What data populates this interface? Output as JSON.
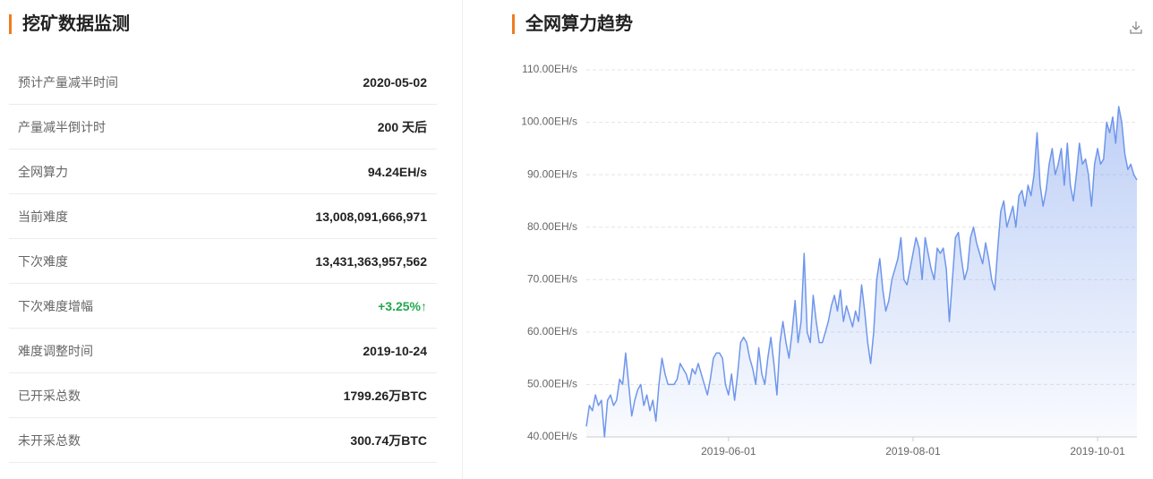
{
  "panel": {
    "title": "挖矿数据监测",
    "rows": [
      [
        "预计产量减半时间",
        "2020-05-02"
      ],
      [
        "产量减半倒计时",
        "200 天后"
      ],
      [
        "全网算力",
        "94.24EH/s"
      ],
      [
        "当前难度",
        "13,008,091,666,971"
      ],
      [
        "下次难度",
        "13,431,363,957,562"
      ],
      [
        "下次难度增幅",
        "+3.25%↑"
      ],
      [
        "难度调整时间",
        "2019-10-24"
      ],
      [
        "已开采总数",
        "1799.26万BTC"
      ],
      [
        "未开采总数",
        "300.74万BTC"
      ]
    ]
  },
  "chart_data": {
    "type": "area",
    "title": "全网算力趋势",
    "color": "#6f96ec",
    "x": [
      "2019-04-15",
      "2019-04-16",
      "2019-04-17",
      "2019-04-18",
      "2019-04-19",
      "2019-04-20",
      "2019-04-21",
      "2019-04-22",
      "2019-04-23",
      "2019-04-24",
      "2019-04-25",
      "2019-04-26",
      "2019-04-27",
      "2019-04-28",
      "2019-04-29",
      "2019-04-30",
      "2019-05-01",
      "2019-05-02",
      "2019-05-03",
      "2019-05-04",
      "2019-05-05",
      "2019-05-06",
      "2019-05-07",
      "2019-05-08",
      "2019-05-09",
      "2019-05-10",
      "2019-05-11",
      "2019-05-12",
      "2019-05-13",
      "2019-05-14",
      "2019-05-15",
      "2019-05-16",
      "2019-05-17",
      "2019-05-18",
      "2019-05-19",
      "2019-05-20",
      "2019-05-21",
      "2019-05-22",
      "2019-05-23",
      "2019-05-24",
      "2019-05-25",
      "2019-05-26",
      "2019-05-27",
      "2019-05-28",
      "2019-05-29",
      "2019-05-30",
      "2019-05-31",
      "2019-06-01",
      "2019-06-02",
      "2019-06-03",
      "2019-06-04",
      "2019-06-05",
      "2019-06-06",
      "2019-06-07",
      "2019-06-08",
      "2019-06-09",
      "2019-06-10",
      "2019-06-11",
      "2019-06-12",
      "2019-06-13",
      "2019-06-14",
      "2019-06-15",
      "2019-06-16",
      "2019-06-17",
      "2019-06-18",
      "2019-06-19",
      "2019-06-20",
      "2019-06-21",
      "2019-06-22",
      "2019-06-23",
      "2019-06-24",
      "2019-06-25",
      "2019-06-26",
      "2019-06-27",
      "2019-06-28",
      "2019-06-29",
      "2019-06-30",
      "2019-07-01",
      "2019-07-02",
      "2019-07-03",
      "2019-07-04",
      "2019-07-05",
      "2019-07-06",
      "2019-07-07",
      "2019-07-08",
      "2019-07-09",
      "2019-07-10",
      "2019-07-11",
      "2019-07-12",
      "2019-07-13",
      "2019-07-14",
      "2019-07-15",
      "2019-07-16",
      "2019-07-17",
      "2019-07-18",
      "2019-07-19",
      "2019-07-20",
      "2019-07-21",
      "2019-07-22",
      "2019-07-23",
      "2019-07-24",
      "2019-07-25",
      "2019-07-26",
      "2019-07-27",
      "2019-07-28",
      "2019-07-29",
      "2019-07-30",
      "2019-07-31",
      "2019-08-01",
      "2019-08-02",
      "2019-08-03",
      "2019-08-04",
      "2019-08-05",
      "2019-08-06",
      "2019-08-07",
      "2019-08-08",
      "2019-08-09",
      "2019-08-10",
      "2019-08-11",
      "2019-08-12",
      "2019-08-13",
      "2019-08-14",
      "2019-08-15",
      "2019-08-16",
      "2019-08-17",
      "2019-08-18",
      "2019-08-19",
      "2019-08-20",
      "2019-08-21",
      "2019-08-22",
      "2019-08-23",
      "2019-08-24",
      "2019-08-25",
      "2019-08-26",
      "2019-08-27",
      "2019-08-28",
      "2019-08-29",
      "2019-08-30",
      "2019-08-31",
      "2019-09-01",
      "2019-09-02",
      "2019-09-03",
      "2019-09-04",
      "2019-09-05",
      "2019-09-06",
      "2019-09-07",
      "2019-09-08",
      "2019-09-09",
      "2019-09-10",
      "2019-09-11",
      "2019-09-12",
      "2019-09-13",
      "2019-09-14",
      "2019-09-15",
      "2019-09-16",
      "2019-09-17",
      "2019-09-18",
      "2019-09-19",
      "2019-09-20",
      "2019-09-21",
      "2019-09-22",
      "2019-09-23",
      "2019-09-24",
      "2019-09-25",
      "2019-09-26",
      "2019-09-27",
      "2019-09-28",
      "2019-09-29",
      "2019-09-30",
      "2019-10-01",
      "2019-10-02",
      "2019-10-03",
      "2019-10-04",
      "2019-10-05",
      "2019-10-06",
      "2019-10-07",
      "2019-10-08",
      "2019-10-09",
      "2019-10-10",
      "2019-10-11",
      "2019-10-12",
      "2019-10-13",
      "2019-10-14"
    ],
    "values": [
      42,
      46,
      45,
      48,
      46,
      47,
      40,
      47,
      48,
      46,
      47,
      51,
      50,
      56,
      50,
      44,
      47,
      49,
      50,
      46,
      48,
      45,
      47,
      43,
      50,
      55,
      52,
      50,
      50,
      50,
      51,
      54,
      53,
      52,
      50,
      53,
      52,
      54,
      52,
      50,
      48,
      51,
      55,
      56,
      56,
      55,
      50,
      48,
      52,
      47,
      52,
      58,
      59,
      58,
      55,
      53,
      50,
      57,
      52,
      50,
      55,
      59,
      54,
      48,
      58,
      62,
      58,
      55,
      60,
      66,
      58,
      62,
      75,
      60,
      58,
      67,
      62,
      58,
      58,
      60,
      62,
      65,
      67,
      64,
      68,
      62,
      65,
      63,
      61,
      64,
      62,
      69,
      64,
      58,
      54,
      60,
      70,
      74,
      68,
      64,
      66,
      70,
      72,
      74,
      78,
      70,
      69,
      72,
      75,
      78,
      76,
      70,
      78,
      75,
      72,
      70,
      76,
      75,
      76,
      72,
      62,
      70,
      78,
      79,
      74,
      70,
      72,
      78,
      80,
      77,
      75,
      73,
      77,
      74,
      70,
      68,
      76,
      83,
      85,
      80,
      82,
      84,
      80,
      86,
      87,
      84,
      88,
      86,
      90,
      98,
      88,
      84,
      87,
      92,
      95,
      90,
      92,
      95,
      88,
      96,
      88,
      85,
      90,
      96,
      92,
      93,
      90,
      84,
      92,
      95,
      92,
      93,
      100,
      98,
      101,
      96,
      103,
      100,
      94,
      91,
      92,
      90,
      89
    ],
    "xlim": [
      "2019-04-15",
      "2019-10-14"
    ],
    "xticks": [
      "2019-06-01",
      "2019-08-01",
      "2019-10-01"
    ],
    "ylim": [
      40,
      110
    ],
    "yticks": [
      {
        "value": 40,
        "label": "40.00EH/s"
      },
      {
        "value": 50,
        "label": "50.00EH/s"
      },
      {
        "value": 60,
        "label": "60.00EH/s"
      },
      {
        "value": 70,
        "label": "70.00EH/s"
      },
      {
        "value": 80,
        "label": "80.00EH/s"
      },
      {
        "value": 90,
        "label": "90.00EH/s"
      },
      {
        "value": 100,
        "label": "100.00EH/s"
      },
      {
        "value": 110,
        "label": "110.00EH/s"
      }
    ],
    "grid": true
  }
}
